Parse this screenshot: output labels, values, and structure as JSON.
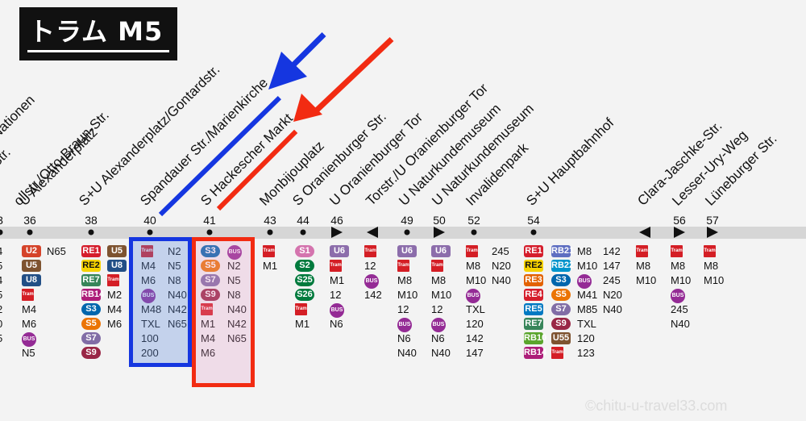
{
  "title": "トラム M5",
  "stations": [
    {
      "name": "Nationen",
      "num": ""
    },
    {
      "name": "Str.",
      "num": ""
    },
    {
      "name": "ollstr./Otto-Braun-Str.",
      "num": ""
    },
    {
      "name": "U Alexanderplatz",
      "num": "36"
    },
    {
      "name": "S+U Alexanderplatz/Gontardstr.",
      "num": "38"
    },
    {
      "name": "Spandauer Str./Marienkirche",
      "num": "40"
    },
    {
      "name": "S Hackescher Markt",
      "num": "41"
    },
    {
      "name": "Monbijouplatz",
      "num": "43"
    },
    {
      "name": "S Oranienburger Str.",
      "num": "44"
    },
    {
      "name": "U Oranienburger Tor",
      "num": "46"
    },
    {
      "name": "Torstr./U Oranienburger Tor",
      "num": ""
    },
    {
      "name": "U Naturkundemuseum",
      "num": "49"
    },
    {
      "name": "U Naturkundemuseum",
      "num": "50"
    },
    {
      "name": "Invalidenpark",
      "num": "52"
    },
    {
      "name": "S+U Hauptbahnhof",
      "num": "54"
    },
    {
      "name": "Clara-Jaschke-Str.",
      "num": ""
    },
    {
      "name": "Lesser-Ury-Weg",
      "num": "56"
    },
    {
      "name": "Lüneburger Str.",
      "num": "57"
    }
  ],
  "edge_number": "3",
  "connections": {
    "col0": [
      "4",
      "5",
      "4",
      "5",
      "2",
      "0",
      "5"
    ],
    "col36": [
      "U2",
      "U5",
      "U8",
      "Tram",
      "M4",
      "M6",
      "BUS",
      "N5"
    ],
    "col36b": [
      "N65"
    ],
    "col38a": [
      "RE1",
      "RE2",
      "RE7",
      "RB14",
      "S3",
      "S5",
      "S7",
      "S9"
    ],
    "col38b": [
      "U5",
      "U8",
      "Tram",
      "M2",
      "M4",
      "M6"
    ],
    "col40a": [
      "Tram",
      "M4",
      "M6",
      "BUS",
      "M48",
      "TXL",
      "100",
      "200"
    ],
    "col40b": [
      "N2",
      "N5",
      "N8",
      "N40",
      "N42",
      "N65"
    ],
    "col41a": [
      "S3",
      "S5",
      "S7",
      "S9",
      "Tram",
      "M1",
      "M4",
      "M6"
    ],
    "col41b": [
      "BUS",
      "N2",
      "N5",
      "N8",
      "N40",
      "N42",
      "N65"
    ],
    "col43": [
      "Tram",
      "M1"
    ],
    "col44": [
      "S1",
      "S2",
      "S25",
      "S26",
      "Tram",
      "M1"
    ],
    "col46": [
      "U6",
      "Tram",
      "M1",
      "12",
      "BUS",
      "N6"
    ],
    "col46b": [
      "Tram",
      "12",
      "BUS",
      "142"
    ],
    "col49": [
      "U6",
      "Tram",
      "M8",
      "M10",
      "12",
      "BUS",
      "N6",
      "N40"
    ],
    "col50": [
      "U6",
      "Tram",
      "M8",
      "M10",
      "12",
      "BUS",
      "N6",
      "N40"
    ],
    "col52": [
      "Tram",
      "M8",
      "M10",
      "BUS",
      "TXL",
      "120",
      "142",
      "147"
    ],
    "col52b": [
      "245",
      "N20",
      "N40"
    ],
    "col54a": [
      "RE1",
      "RE2",
      "RE3",
      "RE4",
      "RE5",
      "RE7",
      "RB10",
      "RB14"
    ],
    "col54b": [
      "RB21",
      "RB22",
      "S3",
      "S5",
      "S7",
      "S9",
      "U55",
      "Tram"
    ],
    "col54c": [
      "M8",
      "M10",
      "BUS",
      "M41",
      "M85",
      "TXL",
      "120",
      "123"
    ],
    "col54d": [
      "142",
      "147",
      "245",
      "N20",
      "N40"
    ],
    "colCJ": [
      "Tram",
      "M8",
      "M10"
    ],
    "col56": [
      "Tram",
      "M8",
      "M10",
      "BUS",
      "245",
      "N40"
    ],
    "col57": [
      "Tram",
      "M8",
      "M10"
    ]
  },
  "colors": {
    "blue_mark": "#1536e0",
    "red_mark": "#f22b12",
    "tram": "#d41e25",
    "bus": "#942b95",
    "track": "#d6d6d6"
  },
  "watermark": "©chitu-u-travel33.com"
}
